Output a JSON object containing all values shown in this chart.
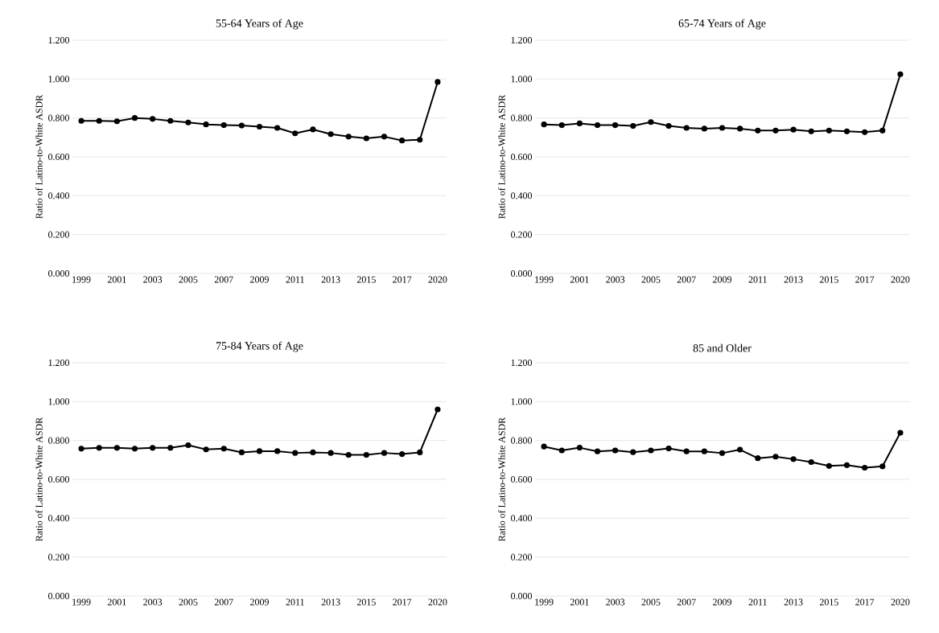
{
  "chart_data": [
    {
      "type": "line",
      "title": "55-64 Years of Age",
      "ylabel": "Ratio of Latino-to-White ASDR",
      "categories": [
        "1999",
        null,
        "2001",
        null,
        "2003",
        null,
        "2005",
        null,
        "2007",
        null,
        "2009",
        null,
        "2011",
        null,
        "2013",
        null,
        "2015",
        null,
        "2017",
        null,
        "2020"
      ],
      "values": [
        0.785,
        0.785,
        0.783,
        0.8,
        0.795,
        0.785,
        0.777,
        0.767,
        0.763,
        0.761,
        0.755,
        0.749,
        0.721,
        0.741,
        0.717,
        0.704,
        0.695,
        0.704,
        0.684,
        0.688,
        0.985
      ],
      "color": "#000000",
      "marker": "circle",
      "grid": "y",
      "ylim": [
        0,
        1.2
      ],
      "yticks": [
        {
          "value": 0,
          "label": "0.000"
        },
        {
          "value": 0.2,
          "label": "0.200"
        },
        {
          "value": 0.4,
          "label": "0.400"
        },
        {
          "value": 0.6,
          "label": "0.600"
        },
        {
          "value": 0.8,
          "label": "0.800"
        },
        {
          "value": 1.0,
          "label": "1.000"
        },
        {
          "value": 1.2,
          "label": "1.200"
        }
      ]
    },
    {
      "type": "line",
      "title": "65-74 Years of Age",
      "ylabel": "Ratio of Latino-to-White ASDR",
      "categories": [
        "1999",
        null,
        "2001",
        null,
        "2003",
        null,
        "2005",
        null,
        "2007",
        null,
        "2009",
        null,
        "2011",
        null,
        "2013",
        null,
        "2015",
        null,
        "2017",
        null,
        "2020"
      ],
      "values": [
        0.767,
        0.763,
        0.772,
        0.763,
        0.763,
        0.759,
        0.779,
        0.759,
        0.749,
        0.745,
        0.749,
        0.745,
        0.735,
        0.735,
        0.74,
        0.731,
        0.735,
        0.731,
        0.727,
        0.735,
        1.025
      ],
      "color": "#000000",
      "marker": "circle",
      "grid": "y",
      "ylim": [
        0,
        1.2
      ],
      "yticks": [
        {
          "value": 0,
          "label": "0.000"
        },
        {
          "value": 0.2,
          "label": "0.200"
        },
        {
          "value": 0.4,
          "label": "0.400"
        },
        {
          "value": 0.6,
          "label": "0.600"
        },
        {
          "value": 0.8,
          "label": "0.800"
        },
        {
          "value": 1.0,
          "label": "1.000"
        },
        {
          "value": 1.2,
          "label": "1.200"
        }
      ]
    },
    {
      "type": "line",
      "title": "75-84 Years of Age",
      "ylabel": "Ratio of Latino-to-White ASDR",
      "categories": [
        "1999",
        null,
        "2001",
        null,
        "2003",
        null,
        "2005",
        null,
        "2007",
        null,
        "2009",
        null,
        "2011",
        null,
        "2013",
        null,
        "2015",
        null,
        "2017",
        null,
        "2020"
      ],
      "values": [
        0.758,
        0.762,
        0.762,
        0.758,
        0.762,
        0.762,
        0.776,
        0.754,
        0.758,
        0.739,
        0.745,
        0.745,
        0.736,
        0.739,
        0.736,
        0.726,
        0.726,
        0.736,
        0.73,
        0.739,
        0.96
      ],
      "color": "#000000",
      "marker": "circle",
      "grid": "y",
      "ylim": [
        0,
        1.2
      ],
      "yticks": [
        {
          "value": 0,
          "label": "0.000"
        },
        {
          "value": 0.2,
          "label": "0.200"
        },
        {
          "value": 0.4,
          "label": "0.400"
        },
        {
          "value": 0.6,
          "label": "0.600"
        },
        {
          "value": 0.8,
          "label": "0.800"
        },
        {
          "value": 1.0,
          "label": "1.000"
        },
        {
          "value": 1.2,
          "label": "1.200"
        }
      ]
    },
    {
      "type": "line",
      "title": "85 and Older",
      "ylabel": "Ratio of Latino-to-White ASDR",
      "categories": [
        "1999",
        null,
        "2001",
        null,
        "2003",
        null,
        "2005",
        null,
        "2007",
        null,
        "2009",
        null,
        "2011",
        null,
        "2013",
        null,
        "2015",
        null,
        "2017",
        null,
        "2020"
      ],
      "values": [
        0.769,
        0.749,
        0.763,
        0.744,
        0.749,
        0.74,
        0.749,
        0.759,
        0.744,
        0.744,
        0.735,
        0.753,
        0.709,
        0.717,
        0.704,
        0.689,
        0.669,
        0.673,
        0.66,
        0.667,
        0.84
      ],
      "color": "#000000",
      "marker": "circle",
      "grid": "y",
      "ylim": [
        0,
        1.2
      ],
      "yticks": [
        {
          "value": 0,
          "label": "0.000"
        },
        {
          "value": 0.2,
          "label": "0.200"
        },
        {
          "value": 0.4,
          "label": "0.400"
        },
        {
          "value": 0.6,
          "label": "0.600"
        },
        {
          "value": 0.8,
          "label": "0.800"
        },
        {
          "value": 1.0,
          "label": "1.000"
        },
        {
          "value": 1.2,
          "label": "1.200"
        }
      ]
    }
  ]
}
